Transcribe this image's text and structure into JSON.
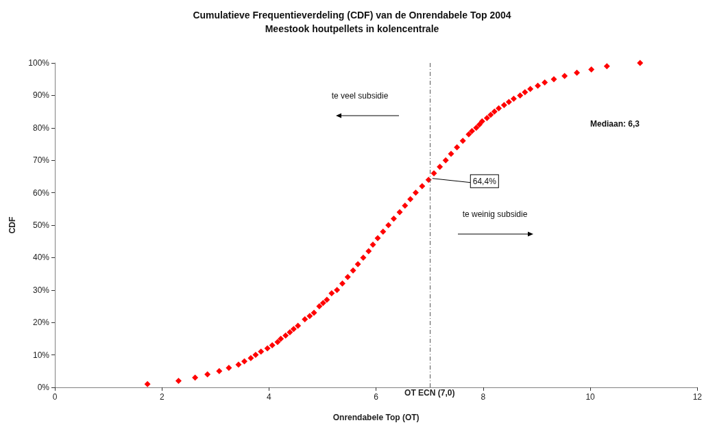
{
  "chart_data": {
    "type": "scatter",
    "title": "Cumulatieve Frequentieverdeling (CDF) van de Onrendabele Top 2004",
    "subtitle": "Meestook houtpellets in kolencentrale",
    "xlabel": "Onrendabele Top (OT)",
    "ylabel": "CDF",
    "x": [
      1.73,
      2.31,
      2.62,
      2.85,
      3.07,
      3.25,
      3.43,
      3.54,
      3.66,
      3.75,
      3.85,
      3.97,
      4.06,
      4.16,
      4.22,
      4.31,
      4.39,
      4.46,
      4.54,
      4.67,
      4.76,
      4.84,
      4.94,
      5.01,
      5.08,
      5.17,
      5.27,
      5.37,
      5.47,
      5.57,
      5.66,
      5.76,
      5.86,
      5.94,
      6.03,
      6.13,
      6.23,
      6.33,
      6.44,
      6.54,
      6.64,
      6.74,
      6.86,
      6.98,
      7.08,
      7.19,
      7.3,
      7.4,
      7.51,
      7.62,
      7.73,
      7.79,
      7.87,
      7.93,
      7.98,
      8.07,
      8.14,
      8.21,
      8.29,
      8.39,
      8.48,
      8.57,
      8.69,
      8.78,
      8.88,
      9.02,
      9.15,
      9.32,
      9.52,
      9.75,
      10.02,
      10.31,
      10.93
    ],
    "values": [
      1,
      2,
      3,
      4,
      5,
      6,
      7,
      8,
      9,
      10,
      11,
      12,
      13,
      14,
      15,
      16,
      17,
      18,
      19,
      21,
      22,
      23,
      25,
      26,
      27,
      29,
      30,
      32,
      34,
      36,
      38,
      40,
      42,
      44,
      46,
      48,
      50,
      52,
      54,
      56,
      58,
      60,
      62,
      64,
      66,
      68,
      70,
      72,
      74,
      76,
      78,
      79,
      80,
      81,
      82,
      83,
      84,
      85,
      86,
      87,
      88,
      89,
      90,
      91,
      92,
      93,
      94,
      95,
      96,
      97,
      98,
      99,
      100
    ],
    "color": "#ff0000",
    "marker": "diamond",
    "grid": false,
    "xlim": [
      0,
      12
    ],
    "xticks": [
      0,
      2,
      4,
      6,
      8,
      10,
      12
    ],
    "ylim": [
      0,
      100
    ],
    "yticks": [
      {
        "value": 0,
        "label": "0%"
      },
      {
        "value": 10,
        "label": "10%"
      },
      {
        "value": 20,
        "label": "20%"
      },
      {
        "value": 30,
        "label": "30%"
      },
      {
        "value": 40,
        "label": "40%"
      },
      {
        "value": 50,
        "label": "50%"
      },
      {
        "value": 60,
        "label": "60%"
      },
      {
        "value": 70,
        "label": "70%"
      },
      {
        "value": 80,
        "label": "80%"
      },
      {
        "value": 90,
        "label": "90%"
      },
      {
        "value": 100,
        "label": "100%"
      }
    ],
    "ref_lines": [
      {
        "axis": "x",
        "value": 7.0,
        "label": "OT ECN (7,0)",
        "color": "#555555",
        "line_style": "dashed"
      }
    ],
    "annotations": [
      "te veel subsidie",
      "te weinig subsidie",
      "Mediaan: 6,3",
      {
        "text": "64,4%",
        "x": 7.0,
        "y": 64.4
      }
    ]
  }
}
